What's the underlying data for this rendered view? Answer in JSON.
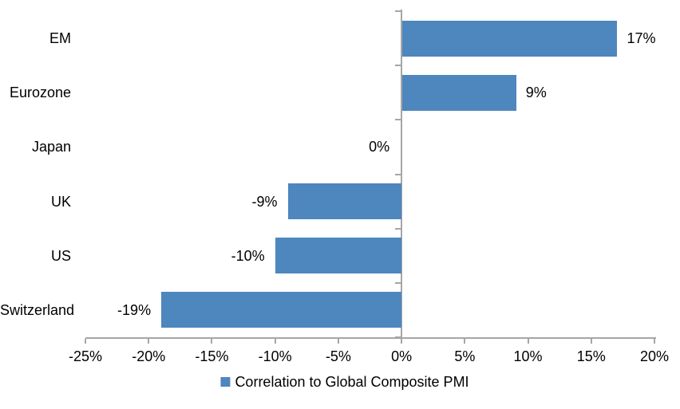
{
  "chart_data": {
    "type": "bar",
    "orientation": "horizontal",
    "title": "",
    "categories": [
      "EM",
      "Eurozone",
      "Japan",
      "UK",
      "US",
      "Switzerland"
    ],
    "values": [
      17,
      9,
      0,
      -9,
      -10,
      -19
    ],
    "value_labels": [
      "17%",
      "9%",
      "0%",
      "-9%",
      "-10%",
      "-19%"
    ],
    "series": [
      {
        "name": "Correlation to Global Composite PMI",
        "values": [
          17,
          9,
          0,
          -9,
          -10,
          -19
        ]
      }
    ],
    "xlim": [
      -25,
      20
    ],
    "x_ticks": [
      -25,
      -20,
      -15,
      -10,
      -5,
      0,
      5,
      10,
      15,
      20
    ],
    "x_tick_labels": [
      "-25%",
      "-20%",
      "-15%",
      "-10%",
      "-5%",
      "0%",
      "5%",
      "10%",
      "15%",
      "20%"
    ],
    "grid": false,
    "legend_position": "bottom",
    "bar_color": "#4E86BE",
    "axis_color": "#A6A6A6",
    "text_color": "#000000"
  },
  "legend": {
    "label": "Correlation to Global Composite PMI"
  }
}
